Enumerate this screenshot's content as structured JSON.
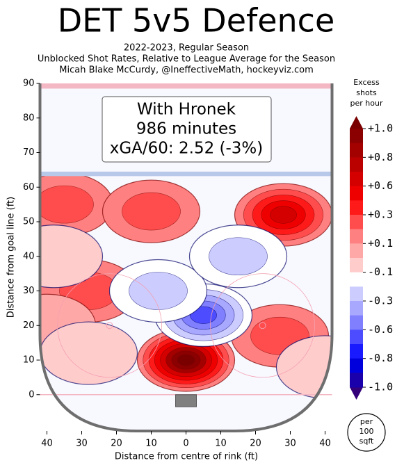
{
  "chart_data": {
    "type": "rink-contour",
    "title": "DET 5v5 Defence",
    "subtitle": [
      "2022-2023, Regular Season",
      "Unblocked Shot Rates, Relative to League Average for the Season",
      "Micah Blake McCurdy, @IneffectiveMath, hockeyviz.com"
    ],
    "annotation": [
      "With Hronek",
      "986 minutes",
      "xGA/60: 2.52 (-3%)"
    ],
    "x_label": "Distance from centre of rink (ft)",
    "y_label": "Distance from goal line (ft)",
    "xlim": [
      -42,
      42
    ],
    "ylim": [
      -10.5,
      90
    ],
    "xticks": [
      {
        "value": -40,
        "label": "40"
      },
      {
        "value": -30,
        "label": "30"
      },
      {
        "value": -20,
        "label": "20"
      },
      {
        "value": -10,
        "label": "10"
      },
      0,
      10,
      20,
      30,
      40
    ],
    "yticks": [
      0,
      10,
      20,
      30,
      40,
      50,
      60,
      70,
      80,
      90
    ],
    "colorbar_label": [
      "Excess",
      "shots",
      "per hour"
    ],
    "colorbar_ticks": [
      {
        "value": 1.0,
        "label": "+1.0"
      },
      {
        "value": 0.8,
        "label": "+0.8"
      },
      {
        "value": 0.6,
        "label": "+0.6"
      },
      {
        "value": 0.3,
        "label": "+0.3"
      },
      {
        "value": 0.1,
        "label": "+0.1"
      },
      {
        "value": -0.1,
        "label": "-0.1"
      },
      {
        "value": -0.3,
        "label": "-0.3"
      },
      {
        "value": -0.6,
        "label": "-0.6"
      },
      {
        "value": -0.8,
        "label": "-0.8"
      },
      {
        "value": -1.0,
        "label": "-1.0"
      }
    ],
    "colors": [
      "#7a0000",
      "#8b0000",
      "#a30000",
      "#bb0000",
      "#d40000",
      "#ee0000",
      "#ff1a1a",
      "#ff4d4d",
      "#ff8080",
      "#ffa8a8",
      "#ffcccc",
      "#ffffff",
      "#ccccff",
      "#a8a8ff",
      "#8080ff",
      "#4d4dff",
      "#1a1aff",
      "#0000dd",
      "#1a00aa",
      "#33007a"
    ],
    "unit_note": [
      "per",
      "100",
      "sqft"
    ],
    "hotspots": [
      {
        "x": 0,
        "y": 10,
        "value": 1.0
      },
      {
        "x": 28,
        "y": 52,
        "value": 0.6
      },
      {
        "x": -35,
        "y": 55,
        "value": 0.3
      },
      {
        "x": -10,
        "y": 53,
        "value": 0.3
      },
      {
        "x": -28,
        "y": 30,
        "value": 0.3
      },
      {
        "x": 27,
        "y": 17,
        "value": 0.3
      },
      {
        "x": -40,
        "y": 20,
        "value": 0.1
      },
      {
        "x": 5,
        "y": 23,
        "value": -0.6
      },
      {
        "x": -8,
        "y": 30,
        "value": -0.3
      },
      {
        "x": 15,
        "y": 40,
        "value": -0.3
      },
      {
        "x": -28,
        "y": 12,
        "value": -0.1
      },
      {
        "x": 40,
        "y": 8,
        "value": -0.1
      },
      {
        "x": -38,
        "y": 40,
        "value": -0.1
      }
    ]
  }
}
